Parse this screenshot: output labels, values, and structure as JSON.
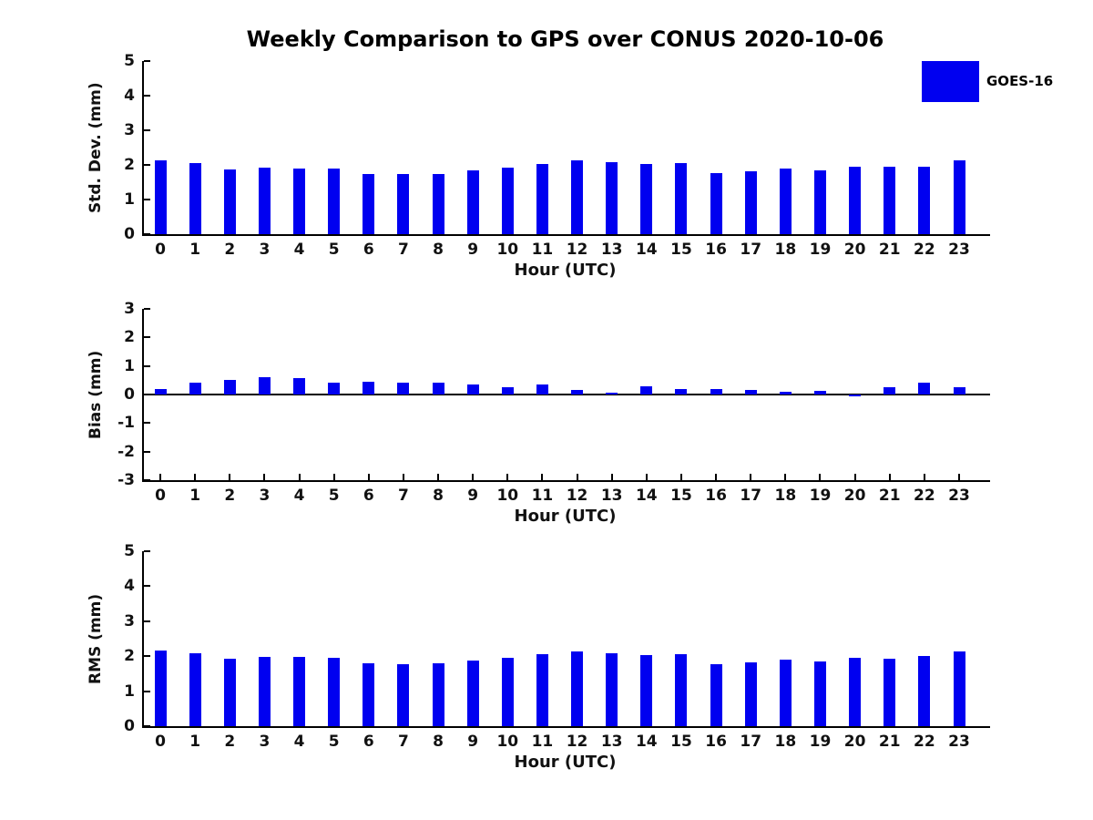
{
  "title": "Weekly Comparison to GPS over CONUS 2020-10-06",
  "legend": {
    "label": "GOES-16",
    "swatch_color": "#0000f0"
  },
  "colors": {
    "bar": "#0000f0",
    "axis": "#000000",
    "text": "#111111"
  },
  "chart_data": [
    {
      "type": "bar",
      "series_name": "GOES-16",
      "title": "Weekly Comparison to GPS over CONUS 2020-10-06",
      "ylabel": "Std. Dev. (mm)",
      "xlabel": "Hour (UTC)",
      "ylim": [
        0,
        5
      ],
      "yticks": [
        0,
        1,
        2,
        3,
        4,
        5
      ],
      "grid": false,
      "legend_position": "upper-right-outside",
      "categories": [
        "0",
        "1",
        "2",
        "3",
        "4",
        "5",
        "6",
        "7",
        "8",
        "9",
        "10",
        "11",
        "12",
        "13",
        "14",
        "15",
        "16",
        "17",
        "18",
        "19",
        "20",
        "21",
        "22",
        "23"
      ],
      "values": [
        2.13,
        2.05,
        1.87,
        1.92,
        1.89,
        1.89,
        1.74,
        1.73,
        1.73,
        1.83,
        1.92,
        2.03,
        2.13,
        2.09,
        2.03,
        2.06,
        1.76,
        1.81,
        1.89,
        1.85,
        1.96,
        1.94,
        1.96,
        2.14
      ]
    },
    {
      "type": "bar",
      "series_name": "GOES-16",
      "ylabel": "Bias (mm)",
      "xlabel": "Hour (UTC)",
      "ylim": [
        -3,
        3
      ],
      "yticks": [
        -3,
        -2,
        -1,
        0,
        1,
        2,
        3
      ],
      "zero_line": true,
      "grid": false,
      "categories": [
        "0",
        "1",
        "2",
        "3",
        "4",
        "5",
        "6",
        "7",
        "8",
        "9",
        "10",
        "11",
        "12",
        "13",
        "14",
        "15",
        "16",
        "17",
        "18",
        "19",
        "20",
        "21",
        "22",
        "23"
      ],
      "values": [
        0.2,
        0.4,
        0.5,
        0.6,
        0.57,
        0.4,
        0.45,
        0.4,
        0.42,
        0.35,
        0.27,
        0.34,
        0.15,
        0.05,
        0.28,
        0.18,
        0.18,
        0.17,
        0.09,
        0.13,
        -0.05,
        0.25,
        0.42,
        0.25
      ]
    },
    {
      "type": "bar",
      "series_name": "GOES-16",
      "ylabel": "RMS (mm)",
      "xlabel": "Hour (UTC)",
      "ylim": [
        0,
        5
      ],
      "yticks": [
        0,
        1,
        2,
        3,
        4,
        5
      ],
      "grid": false,
      "categories": [
        "0",
        "1",
        "2",
        "3",
        "4",
        "5",
        "6",
        "7",
        "8",
        "9",
        "10",
        "11",
        "12",
        "13",
        "14",
        "15",
        "16",
        "17",
        "18",
        "19",
        "20",
        "21",
        "22",
        "23"
      ],
      "values": [
        2.15,
        2.08,
        1.94,
        1.99,
        1.99,
        1.95,
        1.8,
        1.77,
        1.79,
        1.87,
        1.95,
        2.05,
        2.13,
        2.09,
        2.04,
        2.06,
        1.78,
        1.81,
        1.9,
        1.86,
        1.96,
        1.94,
        2.0,
        2.14
      ]
    }
  ]
}
